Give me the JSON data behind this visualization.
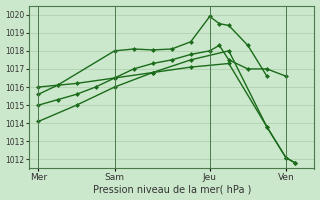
{
  "xlabel": "Pression niveau de la mer( hPa )",
  "background_color": "#cce8cc",
  "grid_color": "#aaccaa",
  "line_color": "#1a6b1a",
  "ylim": [
    1011.5,
    1020.5
  ],
  "yticks": [
    1012,
    1013,
    1014,
    1015,
    1016,
    1017,
    1018,
    1019,
    1020
  ],
  "xtick_labels": [
    "Mer",
    "Sam",
    "Jeu",
    "Ven"
  ],
  "xtick_positions": [
    0,
    4,
    9,
    13
  ],
  "vline_positions": [
    0,
    4,
    9,
    13
  ],
  "xlim": [
    -0.5,
    14.5
  ],
  "line1_x": [
    0,
    1,
    2,
    3,
    4,
    5,
    6,
    7,
    8,
    9,
    9.5,
    10,
    11,
    12,
    13
  ],
  "line1_y": [
    1015.0,
    1015.3,
    1015.6,
    1016.0,
    1016.5,
    1017.0,
    1017.3,
    1017.5,
    1017.8,
    1018.0,
    1018.3,
    1017.5,
    1017.0,
    1017.0,
    1016.6
  ],
  "line2_x": [
    0,
    1,
    4,
    5,
    6,
    7,
    8,
    9,
    9.5,
    10,
    11,
    12
  ],
  "line2_y": [
    1015.6,
    1016.1,
    1018.0,
    1018.1,
    1018.05,
    1018.1,
    1018.5,
    1019.9,
    1019.5,
    1019.4,
    1018.3,
    1016.6
  ],
  "line3_x": [
    0,
    2,
    4,
    6,
    8,
    10,
    12,
    13,
    13.5
  ],
  "line3_y": [
    1014.1,
    1015.0,
    1016.0,
    1016.8,
    1017.5,
    1018.0,
    1013.8,
    1012.1,
    1011.8
  ],
  "line4_x": [
    0,
    2,
    4,
    6,
    8,
    10,
    12,
    13,
    13.5
  ],
  "line4_y": [
    1016.0,
    1016.2,
    1016.5,
    1016.8,
    1017.1,
    1017.3,
    1013.8,
    1012.1,
    1011.8
  ]
}
